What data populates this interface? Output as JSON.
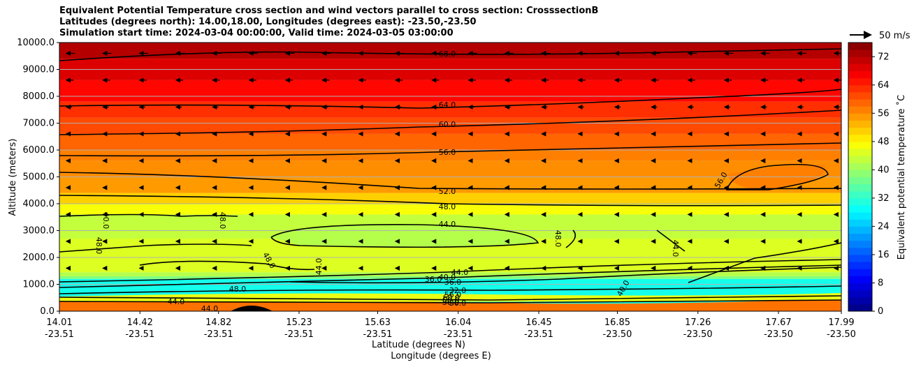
{
  "chart_data": {
    "type": "contourf_with_quivers",
    "title": [
      "Equivalent Potential Temperature cross section and wind vectors parallel to cross section: CrosssectionB",
      "Latitudes (degrees north): 14.00,18.00, Longitudes (degrees east): -23.50,-23.50",
      "Simulation start time: 2024-03-04 00:00:00, Valid time: 2024-03-05 03:00:00"
    ],
    "ylabel": "Altitude (meters)",
    "xlabel": "Latitude (degrees N)",
    "xlabel2": "Longitude (degrees E)",
    "ylim": [
      0,
      10000
    ],
    "yticks": [
      "0.0",
      "1000.0",
      "2000.0",
      "3000.0",
      "4000.0",
      "5000.0",
      "6000.0",
      "7000.0",
      "8000.0",
      "9000.0",
      "10000.0"
    ],
    "xticks_lat": [
      "14.01",
      "14.42",
      "14.82",
      "15.23",
      "15.63",
      "16.04",
      "16.45",
      "16.85",
      "17.26",
      "17.67",
      "17.99"
    ],
    "xticks_lon": [
      "-23.51",
      "-23.51",
      "-23.51",
      "-23.51",
      "-23.51",
      "-23.51",
      "-23.51",
      "-23.50",
      "-23.50",
      "-23.50",
      "-23.50"
    ],
    "grid": "horizontal",
    "colorbar": {
      "label": "Equivalent potential temperature ˚C",
      "range": [
        0,
        76
      ],
      "ticks": [
        "0",
        "8",
        "16",
        "24",
        "32",
        "40",
        "48",
        "56",
        "64",
        "72"
      ]
    },
    "quiver_key": "50 m/s",
    "contour_labels": [
      "68.0",
      "64.0",
      "60.0",
      "56.0",
      "52.0",
      "48.0",
      "44.0",
      "44.0",
      "40.0",
      "36.0",
      "40.0",
      "48.0",
      "44.0",
      "48.0",
      "44.0",
      "48.0",
      "48.0",
      "56.0",
      "44.0",
      "44.0",
      "48.0",
      "40.0",
      "36.0",
      "56.0",
      "60.0",
      "60.0",
      "36.0",
      "36.0",
      "32.0"
    ],
    "colors": {
      "cmap": "jet"
    }
  }
}
